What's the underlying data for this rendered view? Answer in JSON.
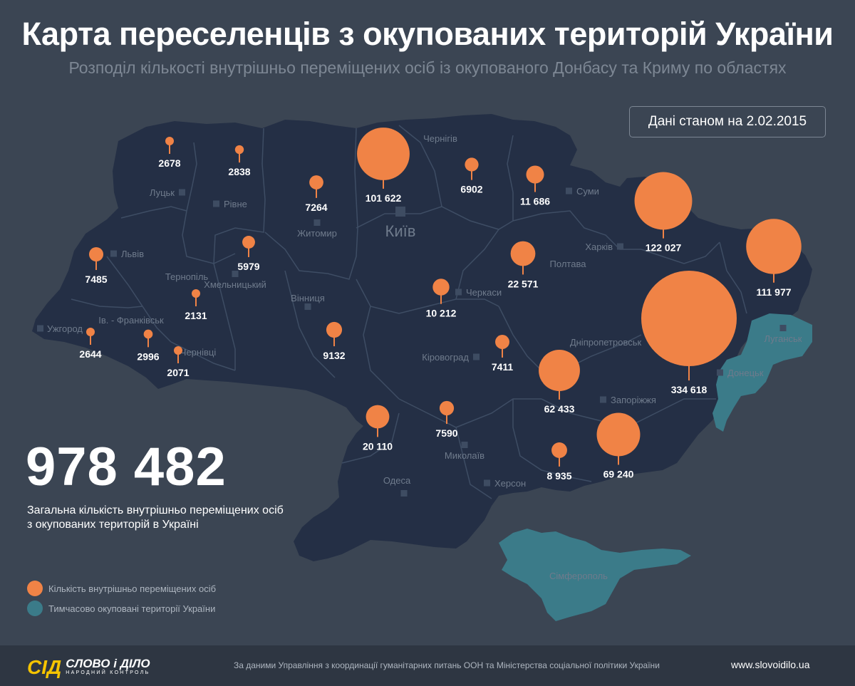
{
  "header": {
    "title": "Карта переселенців з окупованих територій України",
    "subtitle": "Розподіл кількості внутрішньо переміщених осіб із окупованого Донбасу та Криму по областях",
    "date_label": "Дані станом на 2.02.2015"
  },
  "colors": {
    "background": "#3b4553",
    "land": "#242f45",
    "occupied": "#3b7b89",
    "bubble": "#f08346",
    "text_muted": "#7d8794",
    "logo_yellow": "#f5c400"
  },
  "total": {
    "value": "978 482",
    "caption_line1": "Загальна кількість внутрішньо переміщених осіб",
    "caption_line2": "з окупованих територій в Україні"
  },
  "legend": {
    "idp_label": "Кількість внутрішньо переміщених осіб",
    "occupied_label": "Тимчасово окуповані території України"
  },
  "cities": [
    {
      "name": "Чернігів"
    },
    {
      "name": "Луцьк"
    },
    {
      "name": "Рівне"
    },
    {
      "name": "Житомир"
    },
    {
      "name": "Київ",
      "capital": true
    },
    {
      "name": "Суми"
    },
    {
      "name": "Харків"
    },
    {
      "name": "Львів"
    },
    {
      "name": "Тернопіль"
    },
    {
      "name": "Хмельницький"
    },
    {
      "name": "Вінниця"
    },
    {
      "name": "Полтава"
    },
    {
      "name": "Черкаси"
    },
    {
      "name": "Ужгород"
    },
    {
      "name": "Ів. - Франківськ"
    },
    {
      "name": "Чернівці"
    },
    {
      "name": "Кіровоград"
    },
    {
      "name": "Дніпропетровськ"
    },
    {
      "name": "Луганськ"
    },
    {
      "name": "Донецьк"
    },
    {
      "name": "Запоріжжя"
    },
    {
      "name": "Миколаїв"
    },
    {
      "name": "Одеса"
    },
    {
      "name": "Херсон"
    },
    {
      "name": "Сімферополь"
    }
  ],
  "regions_idp": [
    {
      "label": "2678",
      "value": 2678
    },
    {
      "label": "2838",
      "value": 2838
    },
    {
      "label": "7264",
      "value": 7264
    },
    {
      "label": "101 622",
      "value": 101622
    },
    {
      "label": "6902",
      "value": 6902
    },
    {
      "label": "11 686",
      "value": 11686
    },
    {
      "label": "122 027",
      "value": 122027
    },
    {
      "label": "111 977",
      "value": 111977
    },
    {
      "label": "7485",
      "value": 7485
    },
    {
      "label": "5979",
      "value": 5979
    },
    {
      "label": "2131",
      "value": 2131
    },
    {
      "label": "2644",
      "value": 2644
    },
    {
      "label": "2996",
      "value": 2996
    },
    {
      "label": "2071",
      "value": 2071
    },
    {
      "label": "9132",
      "value": 9132
    },
    {
      "label": "10 212",
      "value": 10212
    },
    {
      "label": "22 571",
      "value": 22571
    },
    {
      "label": "7411",
      "value": 7411
    },
    {
      "label": "62 433",
      "value": 62433
    },
    {
      "label": "334 618",
      "value": 334618
    },
    {
      "label": "20 110",
      "value": 20110
    },
    {
      "label": "7590",
      "value": 7590
    },
    {
      "label": "8 935",
      "value": 8935
    },
    {
      "label": "69 240",
      "value": 69240
    }
  ],
  "footer": {
    "logo_mark": "СІД",
    "logo_name": "СЛОВО і ДІЛО",
    "logo_sub": "НАРОДНИЙ КОНТРОЛЬ",
    "source": "За даними Управління з координації гуманітарних питань ООН та Міністерства соціальної політики України",
    "site": "www.slovoidilo.ua"
  }
}
